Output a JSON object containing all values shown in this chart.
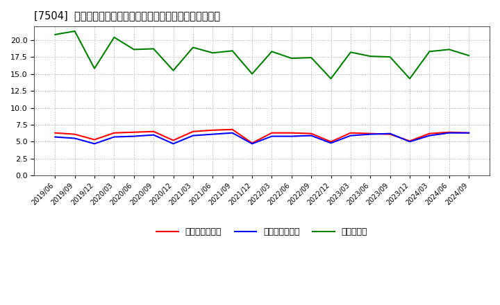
{
  "title": "[7504]  売上債権回転率、買入債務回転率、在庫回転率の推移",
  "x_labels": [
    "2019/06",
    "2019/09",
    "2019/12",
    "2020/03",
    "2020/06",
    "2020/09",
    "2020/12",
    "2021/03",
    "2021/06",
    "2021/09",
    "2021/12",
    "2022/03",
    "2022/06",
    "2022/09",
    "2022/12",
    "2023/03",
    "2023/06",
    "2023/09",
    "2023/12",
    "2024/03",
    "2024/06",
    "2024/09"
  ],
  "receivables": [
    6.3,
    6.1,
    5.3,
    6.3,
    6.4,
    6.5,
    5.2,
    6.5,
    6.7,
    6.8,
    4.8,
    6.3,
    6.3,
    6.2,
    5.0,
    6.3,
    6.2,
    6.1,
    5.1,
    6.2,
    6.4,
    6.3
  ],
  "payables": [
    5.7,
    5.5,
    4.7,
    5.7,
    5.8,
    6.0,
    4.7,
    5.9,
    6.1,
    6.3,
    4.7,
    5.8,
    5.8,
    5.9,
    4.8,
    5.9,
    6.1,
    6.2,
    5.0,
    5.9,
    6.3,
    6.3
  ],
  "inventory": [
    20.8,
    21.3,
    15.8,
    20.4,
    18.6,
    18.7,
    15.5,
    18.9,
    18.1,
    18.4,
    15.0,
    18.3,
    17.3,
    17.4,
    14.3,
    18.2,
    17.6,
    17.5,
    14.3,
    18.3,
    18.6,
    17.7
  ],
  "receivables_color": "#ff0000",
  "payables_color": "#0000ff",
  "inventory_color": "#008000",
  "ylim": [
    0.0,
    22.0
  ],
  "yticks": [
    0.0,
    2.5,
    5.0,
    7.5,
    10.0,
    12.5,
    15.0,
    17.5,
    20.0
  ],
  "background_color": "#ffffff",
  "plot_bg_color": "#ffffff",
  "grid_color": "#aaaaaa",
  "legend_receivables": "売上債権回転率",
  "legend_payables": "買入債務回転率",
  "legend_inventory": "在庫回転率"
}
